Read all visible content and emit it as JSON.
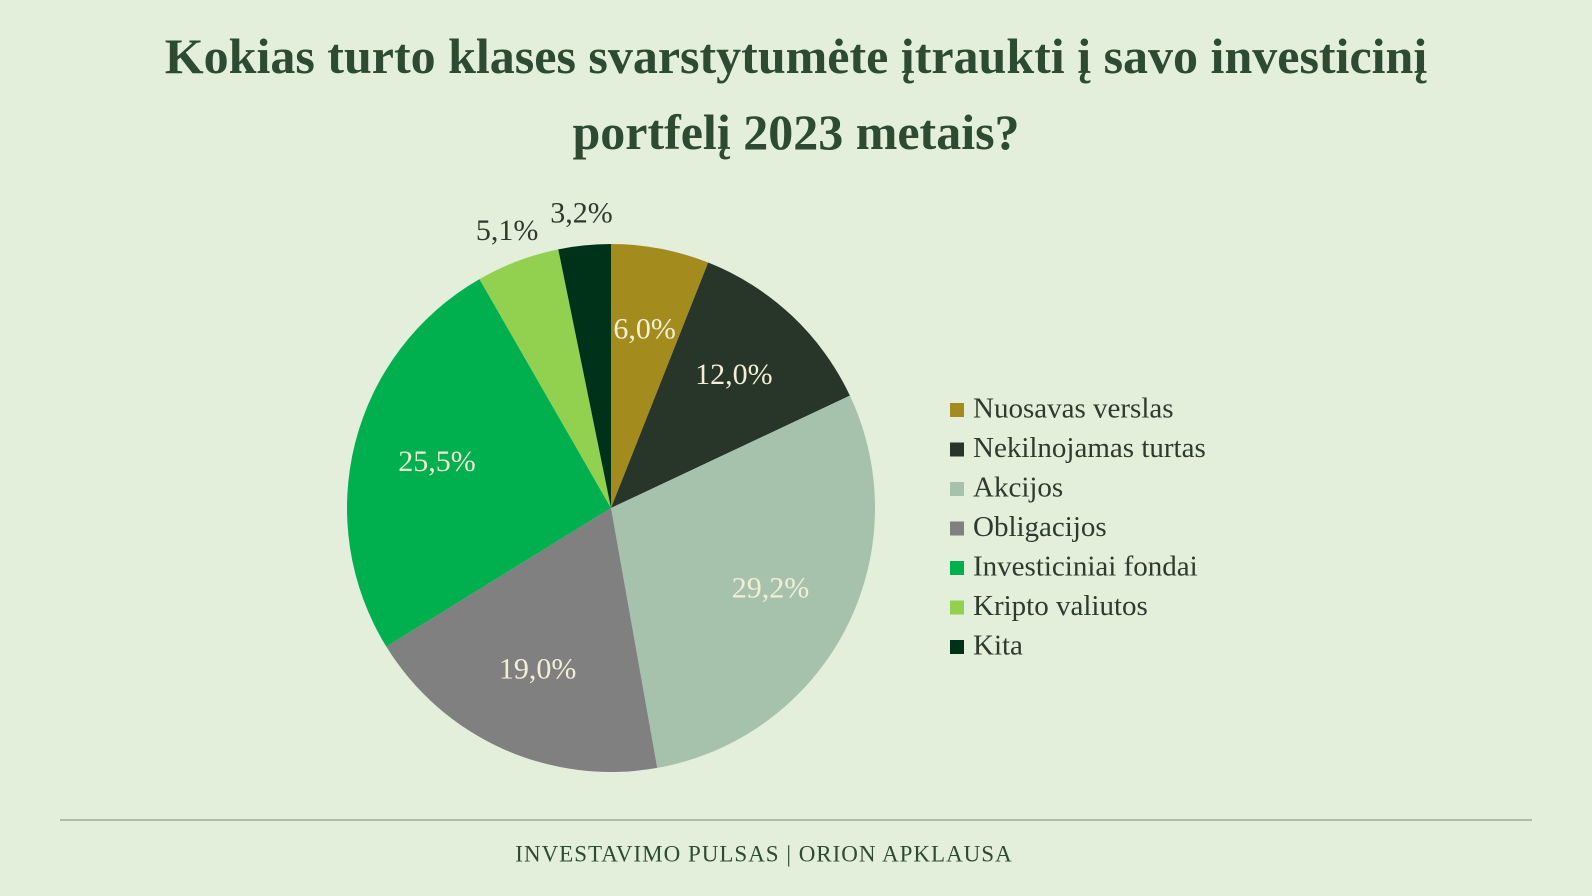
{
  "chart_data": {
    "type": "pie",
    "title": "Kokias turto klases svarstytumėte įtraukti į savo investicinį portfelį 2023 metais?",
    "categories": [
      "Nuosavas verslas",
      "Nekilnojamas turtas",
      "Akcijos",
      "Obligacijos",
      "Investiciniai fondai",
      "Kripto valiutos",
      "Kita"
    ],
    "values": [
      6.0,
      12.0,
      29.2,
      19.0,
      25.5,
      5.1,
      3.2
    ],
    "value_labels": [
      "6,0%",
      "12,0%",
      "29,2%",
      "19,0%",
      "25,5%",
      "5,1%",
      "3,2%"
    ],
    "colors": [
      "#a38b1e",
      "#28362a",
      "#a6c2ad",
      "#808080",
      "#00b04f",
      "#92d050",
      "#00321a"
    ],
    "legend": "right"
  },
  "footer": "INVESTAVIMO PULSAS | ORION APKLAUSA"
}
